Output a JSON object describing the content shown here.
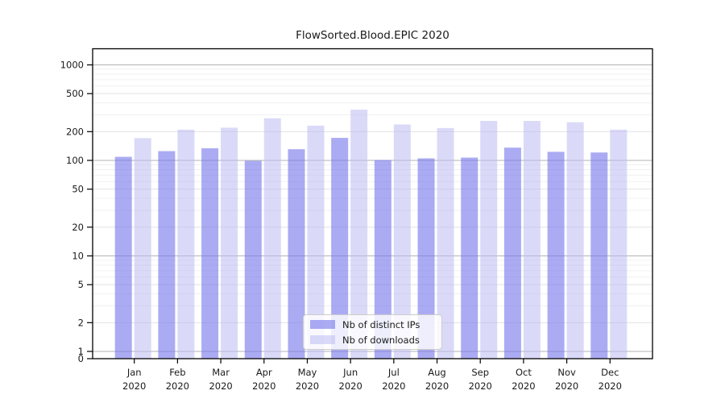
{
  "chart_data": {
    "type": "bar",
    "title": "FlowSorted.Blood.EPIC 2020",
    "categories": [
      "Jan",
      "Feb",
      "Mar",
      "Apr",
      "May",
      "Jun",
      "Jul",
      "Aug",
      "Sep",
      "Oct",
      "Nov",
      "Dec"
    ],
    "x_tick_second_line": "2020",
    "yscale": "log",
    "ytick_labels": [
      "1000",
      "500",
      "200",
      "100",
      "50",
      "20",
      "10",
      "5",
      "2",
      "1",
      "0"
    ],
    "ytick_values": [
      1000,
      500,
      200,
      100,
      50,
      20,
      10,
      5,
      2,
      1,
      0
    ],
    "ylim": [
      0,
      1500
    ],
    "grid": true,
    "legend_position": "lower-center",
    "series": [
      {
        "name": "Nb of distinct IPs",
        "color": "rgba(120,120,235,0.62)",
        "solid_color": "#a8a8f2",
        "values": [
          109,
          125,
          134,
          99,
          131,
          172,
          101,
          105,
          107,
          136,
          123,
          121
        ]
      },
      {
        "name": "Nb of downloads",
        "color": "rgba(187,187,242,0.55)",
        "solid_color": "#d9d9f8",
        "values": [
          171,
          210,
          220,
          276,
          231,
          340,
          238,
          218,
          259,
          259,
          251,
          210
        ]
      }
    ]
  }
}
